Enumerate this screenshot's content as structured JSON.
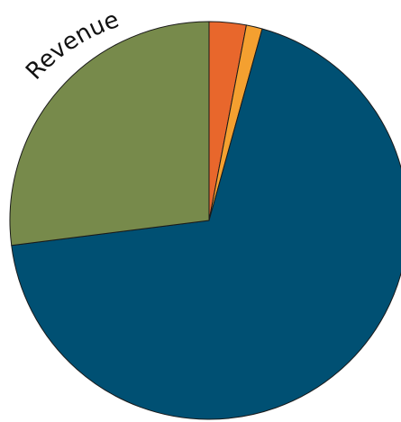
{
  "chart_data": {
    "type": "pie",
    "title": "Revenue",
    "start_angle_deg": 0,
    "direction": "clockwise",
    "slices": [
      {
        "label": "",
        "value": 3.0,
        "color": "#e8672c"
      },
      {
        "label": "",
        "value": 1.3,
        "color": "#f4a030"
      },
      {
        "label": "",
        "value": 68.7,
        "color": "#005073"
      },
      {
        "label": "",
        "value": 27.0,
        "color": "#778a4b"
      }
    ],
    "legend": "none"
  }
}
